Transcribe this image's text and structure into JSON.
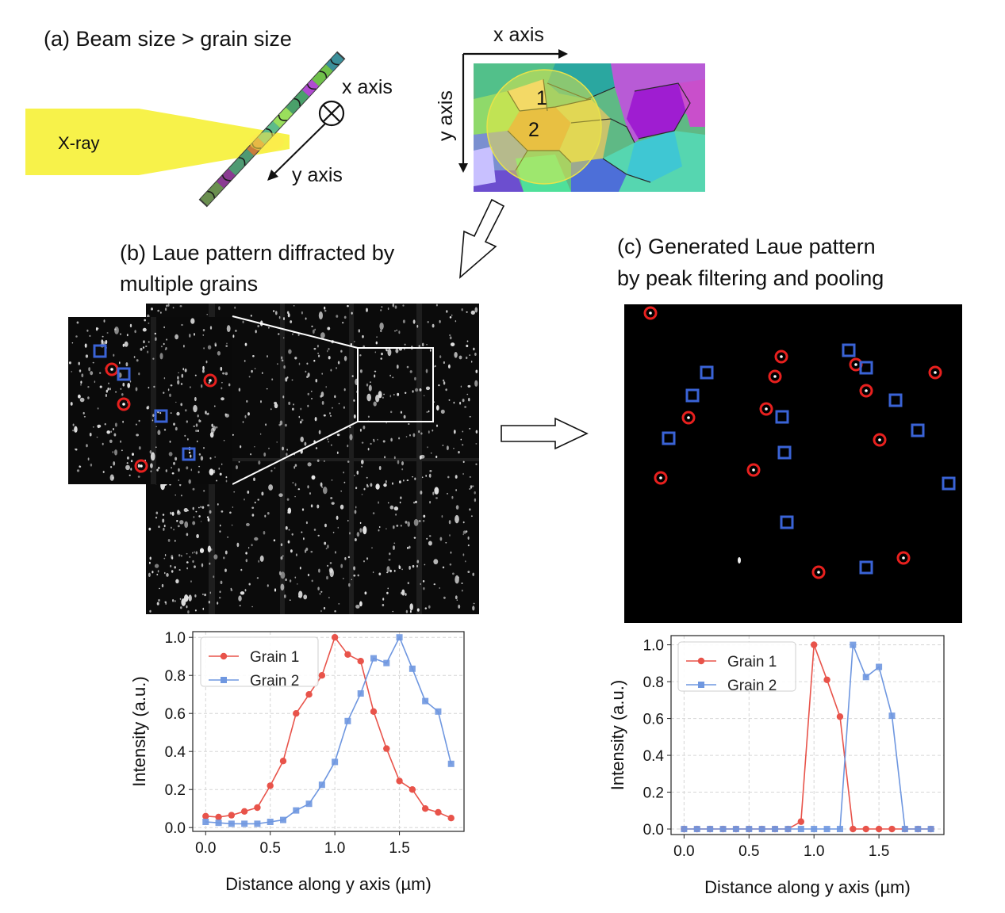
{
  "panel_a": {
    "title": "(a) Beam size > grain size",
    "xray_label": "X-ray",
    "x_axis_label": "x axis",
    "y_axis_label": "y axis",
    "map_x_axis_label": "x axis",
    "map_y_axis_label": "y axis",
    "grain_1": "1",
    "grain_2": "2",
    "colors": {
      "beam": "#f7f24a",
      "beam_spot": "#ffe94d"
    }
  },
  "panel_b": {
    "title_line1": "(b) Laue pattern diffracted by",
    "title_line2": "multiple grains"
  },
  "panel_c": {
    "title_line1": "(c) Generated Laue pattern",
    "title_line2": "by peak filtering and pooling"
  },
  "markers": {
    "grain1_color": "#e8201e",
    "grain2_color": "#3a63d6"
  },
  "chart_data": [
    {
      "type": "line",
      "xlabel": "Distance along y axis (µm)",
      "ylabel": "Intensity (a.u.)",
      "xlim": [
        -0.1,
        2.0
      ],
      "ylim": [
        -0.02,
        1.03
      ],
      "xticks": [
        0.0,
        0.5,
        1.0,
        1.5
      ],
      "xtick_labels": [
        "0.0",
        "0.5",
        "1.0",
        "1.5"
      ],
      "yticks": [
        0.0,
        0.2,
        0.4,
        0.6,
        0.8,
        1.0
      ],
      "ytick_labels": [
        "0.0",
        "0.2",
        "0.4",
        "0.6",
        "0.8",
        "1.0"
      ],
      "grid": true,
      "legend": "top-left",
      "x": [
        0.0,
        0.1,
        0.2,
        0.3,
        0.4,
        0.5,
        0.6,
        0.7,
        0.8,
        0.9,
        1.0,
        1.1,
        1.2,
        1.3,
        1.4,
        1.5,
        1.6,
        1.7,
        1.8,
        1.9
      ],
      "series": [
        {
          "name": "Grain 1",
          "color": "#e8534a",
          "marker": "circle",
          "values": [
            0.06,
            0.055,
            0.065,
            0.085,
            0.105,
            0.22,
            0.35,
            0.6,
            0.7,
            0.8,
            1.0,
            0.91,
            0.875,
            0.61,
            0.415,
            0.245,
            0.2,
            0.1,
            0.08,
            0.05
          ]
        },
        {
          "name": "Grain 2",
          "color": "#6f97e0",
          "marker": "square",
          "values": [
            0.03,
            0.025,
            0.02,
            0.02,
            0.02,
            0.03,
            0.04,
            0.09,
            0.125,
            0.225,
            0.345,
            0.56,
            0.705,
            0.89,
            0.865,
            1.0,
            0.835,
            0.665,
            0.61,
            0.335
          ]
        }
      ]
    },
    {
      "type": "line",
      "xlabel": "Distance along y axis (µm)",
      "ylabel": "Intensity (a.u.)",
      "xlim": [
        -0.1,
        2.0
      ],
      "ylim": [
        -0.03,
        1.05
      ],
      "xticks": [
        0.0,
        0.5,
        1.0,
        1.5
      ],
      "xtick_labels": [
        "0.0",
        "0.5",
        "1.0",
        "1.5"
      ],
      "yticks": [
        0.0,
        0.2,
        0.4,
        0.6,
        0.8,
        1.0
      ],
      "ytick_labels": [
        "0.0",
        "0.2",
        "0.4",
        "0.6",
        "0.8",
        "1.0"
      ],
      "grid": true,
      "legend": "top-left",
      "x": [
        0.0,
        0.1,
        0.2,
        0.3,
        0.4,
        0.5,
        0.6,
        0.7,
        0.8,
        0.9,
        1.0,
        1.1,
        1.2,
        1.3,
        1.4,
        1.5,
        1.6,
        1.7,
        1.8,
        1.9
      ],
      "series": [
        {
          "name": "Grain 1",
          "color": "#e8534a",
          "marker": "circle",
          "values": [
            0,
            0,
            0,
            0,
            0,
            0,
            0,
            0,
            0,
            0.04,
            1.0,
            0.81,
            0.61,
            0,
            0,
            0,
            0,
            0,
            0,
            0
          ]
        },
        {
          "name": "Grain 2",
          "color": "#6f97e0",
          "marker": "square",
          "values": [
            0,
            0,
            0,
            0,
            0,
            0,
            0,
            0,
            0,
            0,
            0,
            0,
            0,
            1.0,
            0.825,
            0.88,
            0.615,
            0,
            0,
            0
          ]
        }
      ]
    }
  ]
}
